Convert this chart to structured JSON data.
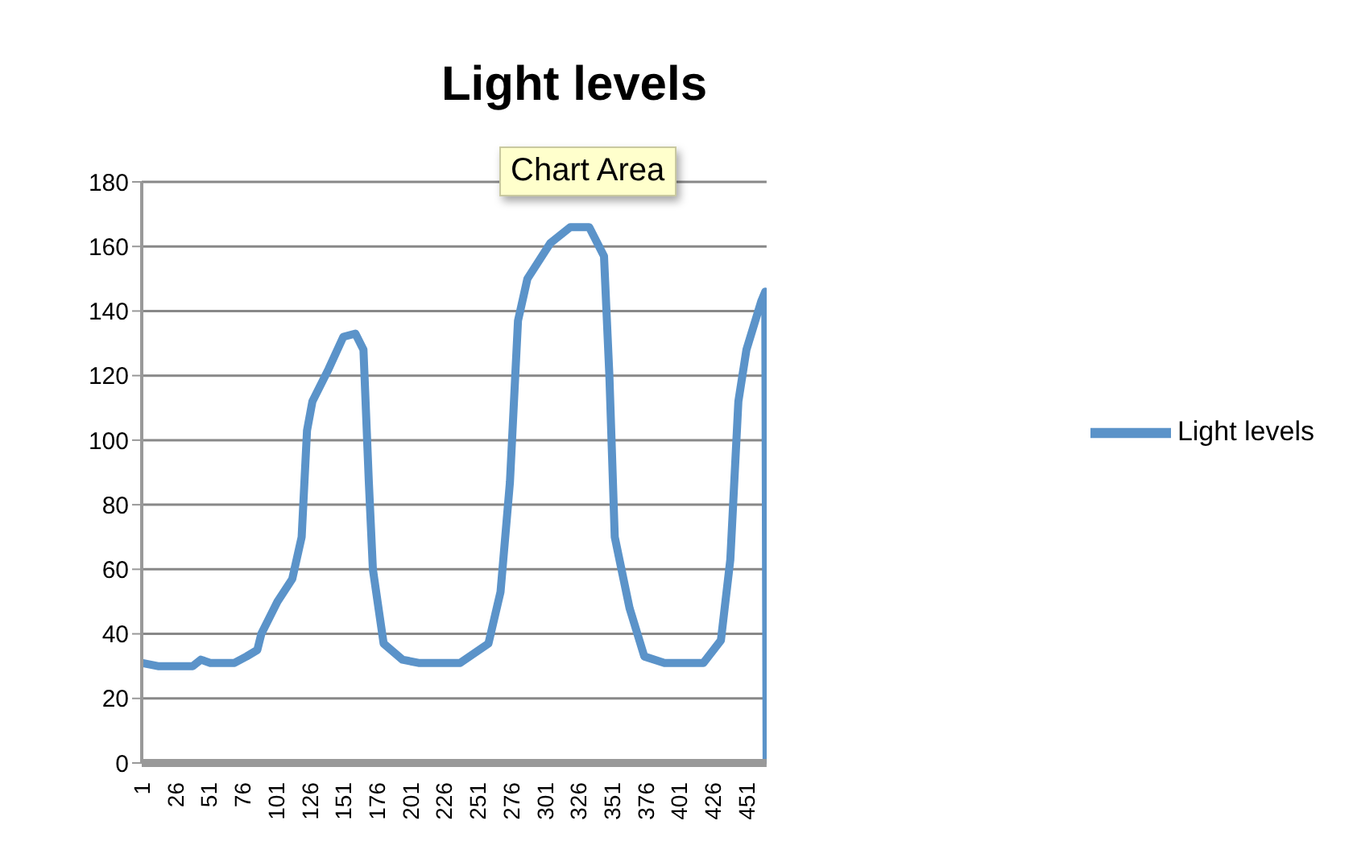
{
  "chart_data": {
    "type": "line",
    "title": "Light levels",
    "annotations": [
      "Chart Area"
    ],
    "x": [
      1,
      13,
      26,
      39,
      45,
      52,
      70,
      79,
      87,
      90,
      102,
      113,
      120,
      124,
      128,
      140,
      151,
      160,
      166,
      170,
      173,
      181,
      195,
      207,
      238,
      259,
      268,
      275,
      281,
      288,
      305,
      320,
      334,
      345,
      349,
      353,
      364,
      375,
      390,
      419,
      432,
      439,
      445,
      451,
      462,
      465,
      466
    ],
    "series": [
      {
        "name": "Light levels",
        "color": "#5b93c9",
        "values": [
          31,
          30,
          30,
          30,
          32,
          31,
          31,
          33,
          35,
          40,
          50,
          57,
          70,
          103,
          112,
          122,
          132,
          133,
          128,
          87,
          60,
          37,
          32,
          31,
          31,
          37,
          53,
          87,
          137,
          150,
          161,
          166,
          166,
          157,
          120,
          70,
          48,
          33,
          31,
          31,
          38,
          63,
          112,
          128,
          143,
          146,
          0
        ]
      }
    ],
    "xlim": [
      1,
      466
    ],
    "xticks": [
      1,
      26,
      51,
      76,
      101,
      126,
      151,
      176,
      201,
      226,
      251,
      276,
      301,
      326,
      351,
      376,
      401,
      426,
      451
    ],
    "ylim": [
      0,
      180
    ],
    "yticks": [
      0,
      20,
      40,
      60,
      80,
      100,
      120,
      140,
      160,
      180
    ],
    "grid": "y",
    "legend": "right",
    "marker": "none",
    "line_style": "solid"
  }
}
